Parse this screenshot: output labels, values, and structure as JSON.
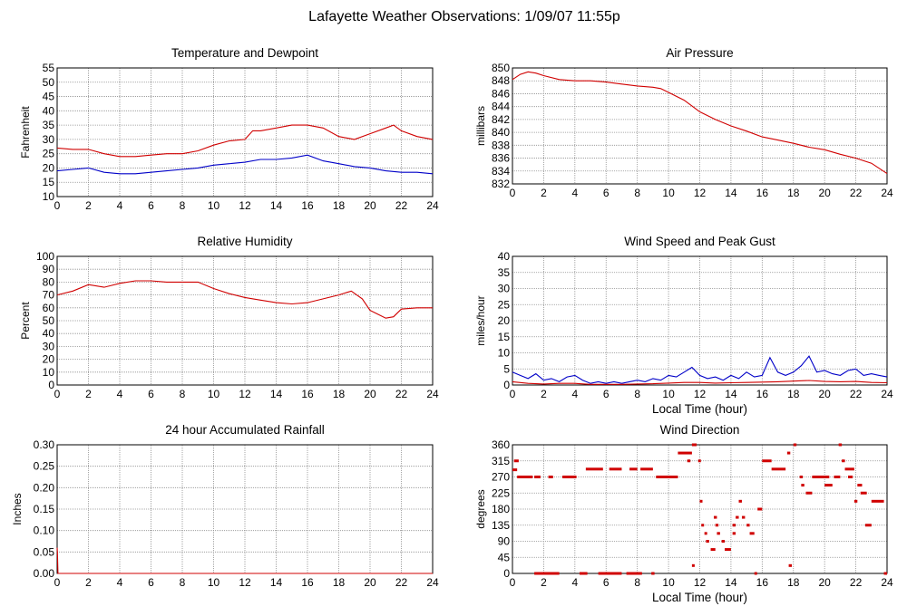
{
  "page_title": "Lafayette Weather Observations: 1/09/07 11:55p",
  "colors": {
    "red": "#d00000",
    "blue": "#0000c8",
    "grid": "#909090",
    "axis": "#000000"
  },
  "chart_data": [
    {
      "id": "temp",
      "type": "line",
      "title": "Temperature and Dewpoint",
      "xlabel": "",
      "ylabel": "Fahrenheit",
      "xlim": [
        0,
        24
      ],
      "ylim": [
        10,
        55
      ],
      "x_ticks": [
        0,
        2,
        4,
        6,
        8,
        10,
        12,
        14,
        16,
        18,
        20,
        22,
        24
      ],
      "y_ticks": [
        10,
        15,
        20,
        25,
        30,
        35,
        40,
        45,
        50,
        55
      ],
      "series": [
        {
          "color": "red",
          "x": [
            0,
            1,
            2,
            3,
            4,
            5,
            6,
            7,
            8,
            9,
            10,
            11,
            12,
            12.5,
            13,
            14,
            15,
            16,
            17,
            18,
            19,
            20,
            21,
            21.5,
            22,
            23,
            24
          ],
          "y": [
            27,
            26.5,
            26.5,
            25,
            24,
            24,
            24.5,
            25,
            25,
            26,
            28,
            29.5,
            30,
            33,
            33,
            34,
            35,
            35,
            34,
            31,
            30,
            32,
            34,
            35,
            33,
            31,
            30
          ]
        },
        {
          "color": "blue",
          "x": [
            0,
            1,
            2,
            3,
            4,
            5,
            6,
            7,
            8,
            9,
            10,
            11,
            12,
            13,
            14,
            15,
            16,
            17,
            18,
            19,
            20,
            21,
            22,
            23,
            24
          ],
          "y": [
            19,
            19.5,
            20,
            18.5,
            18,
            18,
            18.5,
            19,
            19.5,
            20,
            21,
            21.5,
            22,
            23,
            23,
            23.5,
            24.5,
            22.5,
            21.5,
            20.5,
            20,
            19,
            18.5,
            18.5,
            18
          ]
        }
      ]
    },
    {
      "id": "pressure",
      "type": "line",
      "title": "Air Pressure",
      "xlabel": "",
      "ylabel": "millibars",
      "xlim": [
        0,
        24
      ],
      "ylim": [
        832,
        850
      ],
      "x_ticks": [
        0,
        2,
        4,
        6,
        8,
        10,
        12,
        14,
        16,
        18,
        20,
        22,
        24
      ],
      "y_ticks": [
        832,
        834,
        836,
        838,
        840,
        842,
        844,
        846,
        848,
        850
      ],
      "series": [
        {
          "color": "red",
          "x": [
            0,
            0.5,
            1,
            1.5,
            2,
            3,
            4,
            5,
            6,
            7,
            8,
            9,
            9.5,
            10,
            11,
            12,
            13,
            14,
            15,
            16,
            17,
            18,
            19,
            20,
            21,
            22,
            23,
            24
          ],
          "y": [
            848.2,
            849,
            849.4,
            849.2,
            848.8,
            848.2,
            848,
            848,
            847.8,
            847.5,
            847.2,
            847,
            846.8,
            846.2,
            845,
            843.2,
            842,
            841,
            840.2,
            839.3,
            838.8,
            838.3,
            837.7,
            837.3,
            836.6,
            836,
            835.2,
            833.6
          ]
        }
      ]
    },
    {
      "id": "humidity",
      "type": "line",
      "title": "Relative Humidity",
      "xlabel": "",
      "ylabel": "Percent",
      "xlim": [
        0,
        24
      ],
      "ylim": [
        0,
        100
      ],
      "x_ticks": [
        0,
        2,
        4,
        6,
        8,
        10,
        12,
        14,
        16,
        18,
        20,
        22,
        24
      ],
      "y_ticks": [
        0,
        10,
        20,
        30,
        40,
        50,
        60,
        70,
        80,
        90,
        100
      ],
      "series": [
        {
          "color": "red",
          "x": [
            0,
            1,
            2,
            3,
            4,
            5,
            6,
            7,
            8,
            9,
            10,
            11,
            12,
            13,
            14,
            15,
            16,
            17,
            18,
            18.8,
            19.5,
            20,
            20.5,
            21,
            21.5,
            22,
            23,
            24
          ],
          "y": [
            70,
            73,
            78,
            76,
            79,
            81,
            81,
            80,
            80,
            80,
            75,
            71,
            68,
            66,
            64,
            63,
            64,
            67,
            70,
            73,
            67,
            58,
            55,
            52,
            53,
            59,
            60,
            60
          ]
        }
      ]
    },
    {
      "id": "wind",
      "type": "line",
      "title": "Wind Speed and Peak Gust",
      "xlabel": "Local Time (hour)",
      "ylabel": "miles/hour",
      "xlim": [
        0,
        24
      ],
      "ylim": [
        0,
        40
      ],
      "x_ticks": [
        0,
        2,
        4,
        6,
        8,
        10,
        12,
        14,
        16,
        18,
        20,
        22,
        24
      ],
      "y_ticks": [
        0,
        5,
        10,
        15,
        20,
        25,
        30,
        35,
        40
      ],
      "series": [
        {
          "color": "blue",
          "x": [
            0,
            0.5,
            1,
            1.5,
            2,
            2.5,
            3,
            3.5,
            4,
            4.5,
            5,
            5.5,
            6,
            6.5,
            7,
            7.5,
            8,
            8.5,
            9,
            9.5,
            10,
            10.5,
            11,
            11.5,
            12,
            12.5,
            13,
            13.5,
            14,
            14.5,
            15,
            15.5,
            16,
            16.5,
            17,
            17.5,
            18,
            18.5,
            19,
            19.5,
            20,
            20.5,
            21,
            21.5,
            22,
            22.5,
            23,
            23.5,
            24
          ],
          "y": [
            4,
            3,
            2,
            3.5,
            1.5,
            2,
            1,
            2.5,
            3,
            1.5,
            0.5,
            1,
            0.5,
            1,
            0.5,
            1,
            1.5,
            1,
            2,
            1.5,
            3,
            2.5,
            4,
            5.5,
            3,
            2,
            2.5,
            1.5,
            3,
            2,
            4,
            2.5,
            3,
            8.5,
            4,
            3,
            4,
            6,
            9,
            4,
            4.5,
            3.5,
            3,
            4.5,
            5,
            3,
            3.5,
            3,
            2.5
          ]
        },
        {
          "color": "red",
          "x": [
            0,
            1,
            2,
            3,
            4,
            5,
            6,
            7,
            8,
            9,
            10,
            11,
            12,
            13,
            14,
            15,
            16,
            17,
            18,
            19,
            20,
            21,
            22,
            23,
            24
          ],
          "y": [
            1,
            0.5,
            0.3,
            0.5,
            0.5,
            0.2,
            0.2,
            0.2,
            0.3,
            0.4,
            0.6,
            0.8,
            0.8,
            0.6,
            0.7,
            0.8,
            0.9,
            1,
            1.2,
            1.4,
            1.1,
            1,
            1.1,
            0.8,
            0.7
          ]
        }
      ]
    },
    {
      "id": "rain",
      "type": "line",
      "title": "24 hour Accumulated Rainfall",
      "xlabel": "",
      "ylabel": "Inches",
      "xlim": [
        0,
        24
      ],
      "ylim": [
        0,
        0.3
      ],
      "x_ticks": [
        0,
        2,
        4,
        6,
        8,
        10,
        12,
        14,
        16,
        18,
        20,
        22,
        24
      ],
      "y_ticks": [
        0,
        0.05,
        0.1,
        0.15,
        0.2,
        0.25,
        0.3
      ],
      "y_tick_labels": [
        "0.00",
        "0.05",
        "0.10",
        "0.15",
        "0.20",
        "0.25",
        "0.30"
      ],
      "series": [
        {
          "color": "red",
          "x": [
            0,
            0.02,
            0.05,
            24
          ],
          "y": [
            0.06,
            0.05,
            0,
            0
          ]
        }
      ]
    },
    {
      "id": "direction",
      "type": "scatter",
      "title": "Wind Direction",
      "xlabel": "Local Time (hour)",
      "ylabel": "degrees",
      "xlim": [
        0,
        24
      ],
      "ylim": [
        0,
        360
      ],
      "x_ticks": [
        0,
        2,
        4,
        6,
        8,
        10,
        12,
        14,
        16,
        18,
        20,
        22,
        24
      ],
      "y_ticks": [
        0,
        45,
        90,
        135,
        180,
        225,
        270,
        315,
        360
      ],
      "segments": [
        [
          0,
          0.3,
          290
        ],
        [
          0.1,
          0.4,
          315
        ],
        [
          0.3,
          1.3,
          270
        ],
        [
          1.4,
          3.0,
          0
        ],
        [
          1.4,
          1.8,
          270
        ],
        [
          2.3,
          2.6,
          270
        ],
        [
          3.2,
          4.1,
          270
        ],
        [
          4.3,
          4.8,
          0
        ],
        [
          4.7,
          5.8,
          292
        ],
        [
          5.5,
          7.0,
          0
        ],
        [
          6.2,
          7.0,
          292
        ],
        [
          7.3,
          8.3,
          0
        ],
        [
          7.5,
          8.0,
          292
        ],
        [
          8.2,
          9.0,
          292
        ],
        [
          8.9,
          9.1,
          0
        ],
        [
          9.2,
          10.6,
          270
        ],
        [
          10.6,
          11.5,
          337
        ],
        [
          11.5,
          11.8,
          360
        ],
        [
          11.2,
          11.4,
          315
        ],
        [
          11.5,
          11.6,
          22
        ],
        [
          11.9,
          12.0,
          315
        ],
        [
          12.0,
          12.1,
          202
        ],
        [
          12.1,
          12.2,
          135
        ],
        [
          12.3,
          12.4,
          112
        ],
        [
          12.4,
          12.6,
          90
        ],
        [
          12.7,
          13.0,
          67
        ],
        [
          12.9,
          13.1,
          157
        ],
        [
          13.1,
          13.3,
          112
        ],
        [
          13.0,
          13.2,
          135
        ],
        [
          13.4,
          13.6,
          90
        ],
        [
          13.6,
          14.0,
          67
        ],
        [
          14.1,
          14.3,
          135
        ],
        [
          14.1,
          14.3,
          112
        ],
        [
          14.3,
          14.5,
          157
        ],
        [
          14.5,
          14.7,
          202
        ],
        [
          14.7,
          14.9,
          157
        ],
        [
          15.0,
          15.2,
          135
        ],
        [
          15.2,
          15.5,
          112
        ],
        [
          15.5,
          15.6,
          0
        ],
        [
          15.7,
          16.0,
          180
        ],
        [
          16.0,
          16.6,
          315
        ],
        [
          16.6,
          17.5,
          292
        ],
        [
          17.6,
          17.8,
          337
        ],
        [
          17.7,
          17.9,
          22
        ],
        [
          18.0,
          18.2,
          360
        ],
        [
          18.4,
          18.6,
          270
        ],
        [
          18.5,
          18.7,
          247
        ],
        [
          18.8,
          19.2,
          225
        ],
        [
          19.2,
          20.3,
          270
        ],
        [
          20.0,
          20.5,
          247
        ],
        [
          20.6,
          21.0,
          270
        ],
        [
          20.9,
          21.1,
          360
        ],
        [
          21.1,
          21.3,
          315
        ],
        [
          21.3,
          21.9,
          292
        ],
        [
          21.5,
          21.8,
          270
        ],
        [
          21.9,
          22.1,
          202
        ],
        [
          22.1,
          22.4,
          247
        ],
        [
          22.3,
          22.7,
          225
        ],
        [
          22.6,
          23.0,
          135
        ],
        [
          23.0,
          23.8,
          202
        ],
        [
          23.8,
          24.0,
          0
        ]
      ]
    }
  ]
}
